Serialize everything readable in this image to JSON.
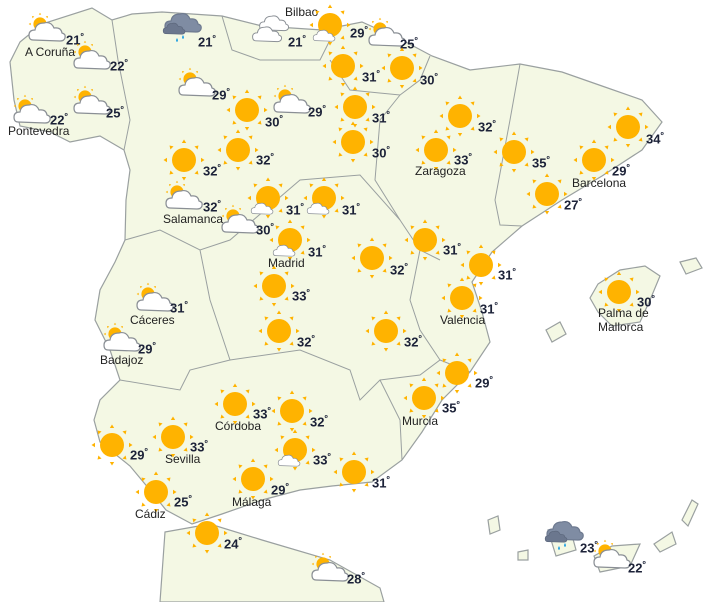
{
  "map": {
    "land_color": "#f4f8e4",
    "border_color": "#9aa0a0",
    "sun_color": "#ffb300",
    "temp_unit": "º"
  },
  "items": [
    {
      "icon": "partly-cloudy",
      "temp": "21",
      "city": "A Coruña"
    },
    {
      "icon": "partly-cloudy",
      "temp": "22",
      "city": ""
    },
    {
      "icon": "partly-cloudy",
      "temp": "22",
      "city": "Pontevedra"
    },
    {
      "icon": "partly-cloudy",
      "temp": "25",
      "city": ""
    },
    {
      "icon": "rain",
      "temp": "21",
      "city": ""
    },
    {
      "icon": "cloudy",
      "temp": "21",
      "city": "Bilbao"
    },
    {
      "icon": "sun-cloud",
      "temp": "29",
      "city": ""
    },
    {
      "icon": "partly-cloudy",
      "temp": "25",
      "city": ""
    },
    {
      "icon": "partly-cloudy",
      "temp": "29",
      "city": ""
    },
    {
      "icon": "sun",
      "temp": "30",
      "city": ""
    },
    {
      "icon": "partly-cloudy",
      "temp": "29",
      "city": ""
    },
    {
      "icon": "sun",
      "temp": "31",
      "city": ""
    },
    {
      "icon": "sun",
      "temp": "30",
      "city": ""
    },
    {
      "icon": "sun",
      "temp": "31",
      "city": ""
    },
    {
      "icon": "sun",
      "temp": "30",
      "city": ""
    },
    {
      "icon": "sun",
      "temp": "32",
      "city": ""
    },
    {
      "icon": "sun",
      "temp": "32",
      "city": ""
    },
    {
      "icon": "partly-cloudy",
      "temp": "32",
      "city": "Salamanca"
    },
    {
      "icon": "partly-cloudy",
      "temp": "30",
      "city": ""
    },
    {
      "icon": "sun-cloud",
      "temp": "31",
      "city": ""
    },
    {
      "icon": "sun-cloud",
      "temp": "31",
      "city": ""
    },
    {
      "icon": "sun",
      "temp": "32",
      "city": ""
    },
    {
      "icon": "sun",
      "temp": "33",
      "city": "Zaragoza"
    },
    {
      "icon": "sun",
      "temp": "35",
      "city": ""
    },
    {
      "icon": "sun",
      "temp": "34",
      "city": ""
    },
    {
      "icon": "sun",
      "temp": "29",
      "city": "Barcelona"
    },
    {
      "icon": "sun",
      "temp": "27",
      "city": ""
    },
    {
      "icon": "sun-cloud",
      "temp": "31",
      "city": "Madrid"
    },
    {
      "icon": "sun",
      "temp": "32",
      "city": ""
    },
    {
      "icon": "sun",
      "temp": "31",
      "city": ""
    },
    {
      "icon": "sun",
      "temp": "31",
      "city": ""
    },
    {
      "icon": "sun",
      "temp": "31",
      "city": "Valencia"
    },
    {
      "icon": "sun",
      "temp": "30",
      "city": "Palma de Mallorca"
    },
    {
      "icon": "partly-cloudy",
      "temp": "31",
      "city": "Cáceres"
    },
    {
      "icon": "partly-cloudy",
      "temp": "29",
      "city": "Badajoz"
    },
    {
      "icon": "sun",
      "temp": "33",
      "city": ""
    },
    {
      "icon": "sun",
      "temp": "32",
      "city": ""
    },
    {
      "icon": "sun",
      "temp": "32",
      "city": ""
    },
    {
      "icon": "sun",
      "temp": "29",
      "city": ""
    },
    {
      "icon": "sun",
      "temp": "35",
      "city": "Murcia"
    },
    {
      "icon": "sun",
      "temp": "33",
      "city": "Córdoba"
    },
    {
      "icon": "sun",
      "temp": "32",
      "city": ""
    },
    {
      "icon": "sun-cloud",
      "temp": "33",
      "city": ""
    },
    {
      "icon": "sun",
      "temp": "29",
      "city": ""
    },
    {
      "icon": "sun",
      "temp": "33",
      "city": "Sevilla"
    },
    {
      "icon": "sun",
      "temp": "31",
      "city": ""
    },
    {
      "icon": "sun",
      "temp": "29",
      "city": "Málaga"
    },
    {
      "icon": "sun",
      "temp": "25",
      "city": "Cádiz"
    },
    {
      "icon": "sun",
      "temp": "24",
      "city": ""
    },
    {
      "icon": "partly-cloudy",
      "temp": "28",
      "city": ""
    },
    {
      "icon": "rain",
      "temp": "23",
      "city": ""
    },
    {
      "icon": "partly-cloudy",
      "temp": "22",
      "city": ""
    }
  ]
}
